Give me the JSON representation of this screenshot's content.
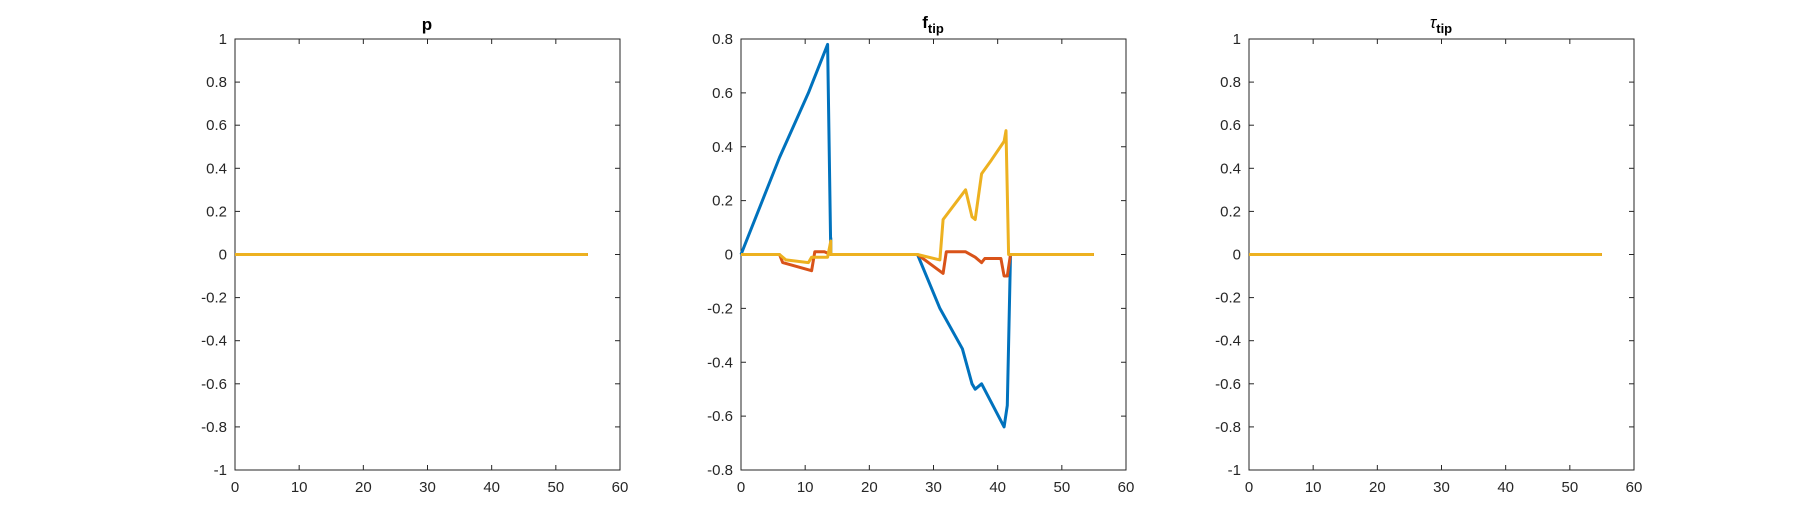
{
  "chart_data": [
    {
      "type": "line",
      "title": "p",
      "xlim": [
        0,
        60
      ],
      "ylim": [
        -1,
        1
      ],
      "xticks": [
        0,
        10,
        20,
        30,
        40,
        50,
        60
      ],
      "yticks": [
        -1,
        -0.8,
        -0.6,
        -0.4,
        -0.2,
        0,
        0.2,
        0.4,
        0.6,
        0.8,
        1
      ],
      "grid": false,
      "series": [
        {
          "color": "#0072BD",
          "points": [
            [
              0,
              0
            ],
            [
              55,
              0
            ]
          ]
        },
        {
          "color": "#D95319",
          "points": [
            [
              0,
              0
            ],
            [
              55,
              0
            ]
          ]
        },
        {
          "color": "#EDB120",
          "points": [
            [
              0,
              0
            ],
            [
              55,
              0
            ]
          ]
        }
      ]
    },
    {
      "type": "line",
      "title": "f",
      "title_subscript": "tip",
      "xlim": [
        0,
        60
      ],
      "ylim": [
        -0.8,
        0.8
      ],
      "xticks": [
        0,
        10,
        20,
        30,
        40,
        50,
        60
      ],
      "yticks": [
        -0.8,
        -0.6,
        -0.4,
        -0.2,
        0,
        0.2,
        0.4,
        0.6,
        0.8
      ],
      "grid": false,
      "series": [
        {
          "color": "#0072BD",
          "points": [
            [
              0,
              0
            ],
            [
              6,
              0.36
            ],
            [
              10.5,
              0.6
            ],
            [
              11,
              0.63
            ],
            [
              13.5,
              0.78
            ],
            [
              14,
              0.0
            ],
            [
              14,
              0.06
            ],
            [
              14,
              0
            ],
            [
              27.5,
              0
            ],
            [
              31,
              -0.2
            ],
            [
              34.5,
              -0.35
            ],
            [
              36,
              -0.48
            ],
            [
              36.5,
              -0.5
            ],
            [
              37.5,
              -0.48
            ],
            [
              41,
              -0.64
            ],
            [
              41.5,
              -0.56
            ],
            [
              42,
              0
            ],
            [
              55,
              0
            ]
          ]
        },
        {
          "color": "#D95319",
          "points": [
            [
              0,
              0
            ],
            [
              6,
              0
            ],
            [
              6.5,
              -0.03
            ],
            [
              11,
              -0.06
            ],
            [
              11.5,
              0.01
            ],
            [
              13,
              0.01
            ],
            [
              14,
              0.0
            ],
            [
              27.5,
              0
            ],
            [
              31.5,
              -0.07
            ],
            [
              32,
              0.01
            ],
            [
              35,
              0.01
            ],
            [
              36.5,
              -0.01
            ],
            [
              37.5,
              -0.03
            ],
            [
              38,
              -0.015
            ],
            [
              40.5,
              -0.015
            ],
            [
              41,
              -0.08
            ],
            [
              41.5,
              -0.08
            ],
            [
              42,
              0
            ],
            [
              55,
              0
            ]
          ]
        },
        {
          "color": "#EDB120",
          "points": [
            [
              0,
              0
            ],
            [
              6,
              0
            ],
            [
              7,
              -0.02
            ],
            [
              10.5,
              -0.03
            ],
            [
              11,
              -0.01
            ],
            [
              13.5,
              -0.01
            ],
            [
              14,
              0.05
            ],
            [
              14,
              0
            ],
            [
              27.5,
              0
            ],
            [
              31,
              -0.02
            ],
            [
              31.5,
              0.13
            ],
            [
              35,
              0.24
            ],
            [
              36,
              0.14
            ],
            [
              36.5,
              0.13
            ],
            [
              37.5,
              0.3
            ],
            [
              39,
              0.35
            ],
            [
              41,
              0.42
            ],
            [
              41.3,
              0.46
            ],
            [
              41.7,
              0.0
            ],
            [
              55,
              0
            ]
          ]
        }
      ]
    },
    {
      "type": "line",
      "title": "τ",
      "title_subscript": "tip",
      "xlim": [
        0,
        60
      ],
      "ylim": [
        -1,
        1
      ],
      "xticks": [
        0,
        10,
        20,
        30,
        40,
        50,
        60
      ],
      "yticks": [
        -1,
        -0.8,
        -0.6,
        -0.4,
        -0.2,
        0,
        0.2,
        0.4,
        0.6,
        0.8,
        1
      ],
      "grid": false,
      "series": [
        {
          "color": "#0072BD",
          "points": [
            [
              0,
              0
            ],
            [
              55,
              0
            ]
          ]
        },
        {
          "color": "#D95319",
          "points": [
            [
              0,
              0
            ],
            [
              55,
              0
            ]
          ]
        },
        {
          "color": "#EDB120",
          "points": [
            [
              0,
              0
            ],
            [
              55,
              0
            ]
          ]
        }
      ]
    }
  ]
}
